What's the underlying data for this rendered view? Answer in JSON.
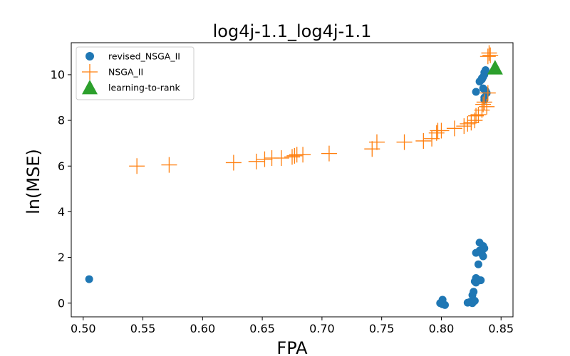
{
  "chart_data": {
    "type": "scatter",
    "title": "log4j-1.1_log4j-1.1",
    "xlabel": "FPA",
    "ylabel": "ln(MSE)",
    "xlim": [
      0.49,
      0.86
    ],
    "ylim": [
      -0.6,
      11.4
    ],
    "xticks": [
      0.5,
      0.55,
      0.6,
      0.65,
      0.7,
      0.75,
      0.8,
      0.85
    ],
    "xtick_labels": [
      "0.50",
      "0.55",
      "0.60",
      "0.65",
      "0.70",
      "0.75",
      "0.80",
      "0.85"
    ],
    "yticks": [
      0,
      2,
      4,
      6,
      8,
      10
    ],
    "ytick_labels": [
      "0",
      "2",
      "4",
      "6",
      "8",
      "10"
    ],
    "grid": false,
    "legend_position": "top-left",
    "series": [
      {
        "name": "revised_NSGA_II",
        "marker": "circle",
        "color": "#1f77b4",
        "points": [
          [
            0.505,
            1.05
          ],
          [
            0.799,
            0.0
          ],
          [
            0.801,
            -0.05
          ],
          [
            0.801,
            0.15
          ],
          [
            0.803,
            -0.08
          ],
          [
            0.822,
            0.02
          ],
          [
            0.824,
            0.05
          ],
          [
            0.826,
            0.35
          ],
          [
            0.826,
            0.0
          ],
          [
            0.827,
            0.5
          ],
          [
            0.828,
            0.1
          ],
          [
            0.828,
            0.95
          ],
          [
            0.829,
            1.1
          ],
          [
            0.829,
            0.9
          ],
          [
            0.83,
            1.05
          ],
          [
            0.829,
            2.2
          ],
          [
            0.831,
            1.7
          ],
          [
            0.832,
            2.65
          ],
          [
            0.832,
            2.3
          ],
          [
            0.833,
            1.0
          ],
          [
            0.834,
            2.15
          ],
          [
            0.834,
            2.35
          ],
          [
            0.835,
            2.05
          ],
          [
            0.835,
            2.5
          ],
          [
            0.836,
            2.4
          ],
          [
            0.829,
            9.25
          ],
          [
            0.832,
            9.7
          ],
          [
            0.833,
            9.75
          ],
          [
            0.834,
            9.8
          ],
          [
            0.834,
            9.85
          ],
          [
            0.835,
            9.4
          ],
          [
            0.835,
            9.9
          ],
          [
            0.836,
            10.0
          ],
          [
            0.836,
            10.1
          ],
          [
            0.836,
            9.0
          ],
          [
            0.836,
            8.9
          ],
          [
            0.837,
            10.2
          ],
          [
            0.837,
            9.3
          ],
          [
            0.838,
            9.2
          ]
        ]
      },
      {
        "name": "NSGA_II",
        "marker": "plus",
        "color": "#ff7f0e",
        "points": [
          [
            0.545,
            6.0
          ],
          [
            0.572,
            6.05
          ],
          [
            0.626,
            6.15
          ],
          [
            0.645,
            6.2
          ],
          [
            0.652,
            6.3
          ],
          [
            0.658,
            6.35
          ],
          [
            0.666,
            6.35
          ],
          [
            0.675,
            6.4
          ],
          [
            0.677,
            6.45
          ],
          [
            0.679,
            6.5
          ],
          [
            0.684,
            6.5
          ],
          [
            0.706,
            6.55
          ],
          [
            0.742,
            6.75
          ],
          [
            0.746,
            7.05
          ],
          [
            0.769,
            7.05
          ],
          [
            0.785,
            7.1
          ],
          [
            0.792,
            7.2
          ],
          [
            0.796,
            7.45
          ],
          [
            0.797,
            7.55
          ],
          [
            0.8,
            7.55
          ],
          [
            0.811,
            7.65
          ],
          [
            0.819,
            7.75
          ],
          [
            0.822,
            7.85
          ],
          [
            0.825,
            7.9
          ],
          [
            0.828,
            8.0
          ],
          [
            0.829,
            8.2
          ],
          [
            0.831,
            8.25
          ],
          [
            0.834,
            8.45
          ],
          [
            0.835,
            8.7
          ],
          [
            0.836,
            8.8
          ],
          [
            0.838,
            8.6
          ],
          [
            0.839,
            9.2
          ],
          [
            0.839,
            10.8
          ],
          [
            0.84,
            10.95
          ],
          [
            0.841,
            10.85
          ]
        ]
      },
      {
        "name": "learning-to-rank",
        "marker": "triangle",
        "color": "#2ca02c",
        "points": [
          [
            0.845,
            10.3
          ]
        ]
      }
    ]
  }
}
